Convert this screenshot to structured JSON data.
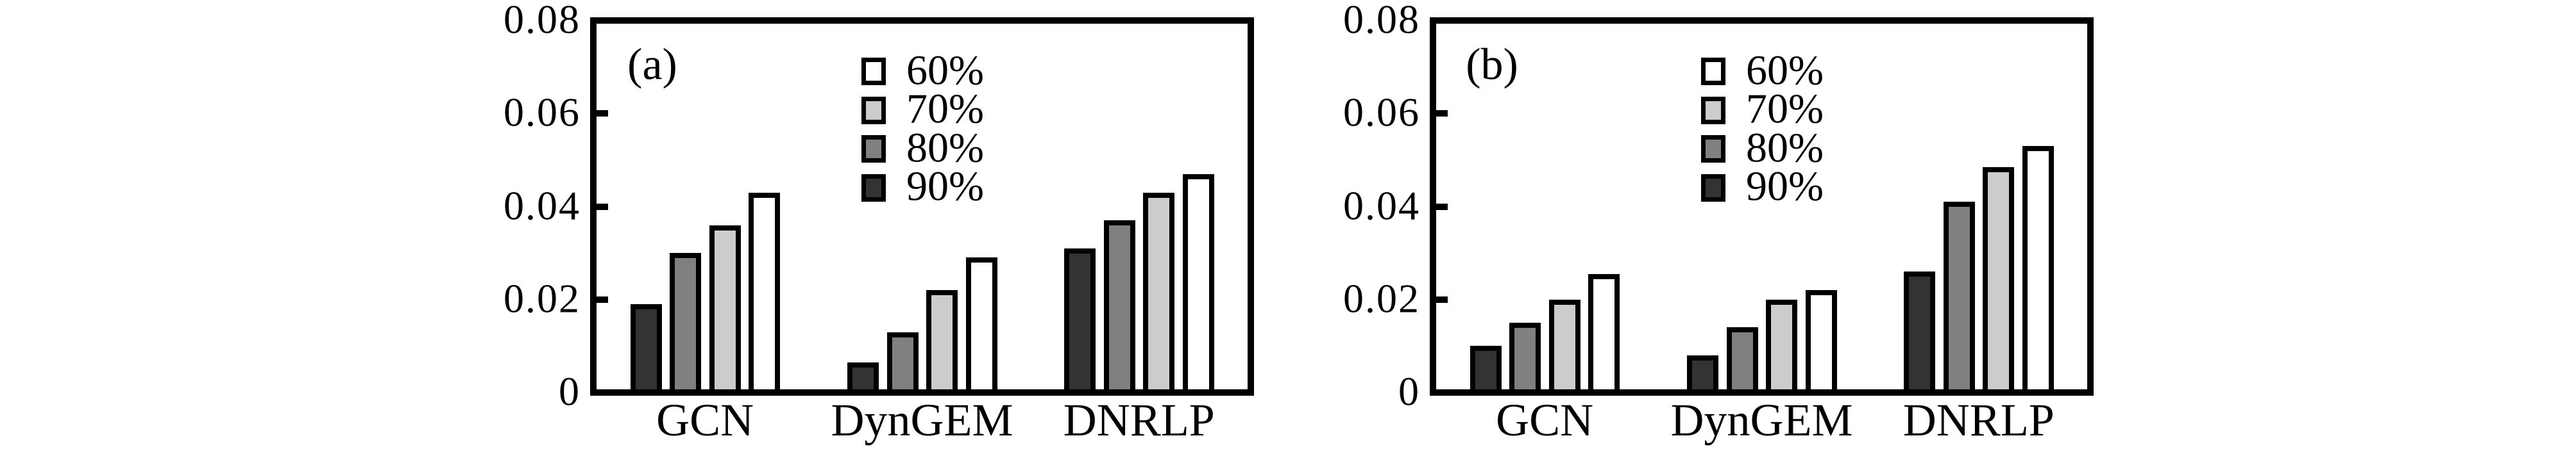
{
  "figure": {
    "background": "#ffffff",
    "axis_color": "#000000",
    "text_color": "#000000"
  },
  "chart_data": [
    {
      "type": "bar",
      "panel_label": "(a)",
      "title": "",
      "xlabel": "",
      "ylabel": "",
      "ylim": [
        0,
        0.08
      ],
      "grid": false,
      "legend_position": "upper-center-inside",
      "categories": [
        "GCN",
        "DynGEM",
        "DNRLP"
      ],
      "series": [
        {
          "name": "90%",
          "color": "#333333",
          "values": [
            0.019,
            0.0065,
            0.031
          ]
        },
        {
          "name": "80%",
          "color": "#808080",
          "values": [
            0.03,
            0.013,
            0.037
          ]
        },
        {
          "name": "70%",
          "color": "#cccccc",
          "values": [
            0.036,
            0.022,
            0.043
          ]
        },
        {
          "name": "60%",
          "color": "#ffffff",
          "values": [
            0.043,
            0.029,
            0.047
          ]
        }
      ],
      "bar_order_note": "bars drawn left-to-right: 90%, 80%, 70%, 60%",
      "legend_order": [
        "60%",
        "70%",
        "80%",
        "90%"
      ],
      "y_ticks": [
        {
          "value": 0,
          "label": "0"
        },
        {
          "value": 0.02,
          "label": "0.02"
        },
        {
          "value": 0.04,
          "label": "0.04"
        },
        {
          "value": 0.06,
          "label": "0.06"
        },
        {
          "value": 0.08,
          "label": "0.08"
        }
      ]
    },
    {
      "type": "bar",
      "panel_label": "(b)",
      "title": "",
      "xlabel": "",
      "ylabel": "",
      "ylim": [
        0,
        0.08
      ],
      "grid": false,
      "legend_position": "upper-center-inside",
      "categories": [
        "GCN",
        "DynGEM",
        "DNRLP"
      ],
      "series": [
        {
          "name": "90%",
          "color": "#333333",
          "values": [
            0.01,
            0.008,
            0.026
          ]
        },
        {
          "name": "80%",
          "color": "#808080",
          "values": [
            0.015,
            0.014,
            0.041
          ]
        },
        {
          "name": "70%",
          "color": "#cccccc",
          "values": [
            0.02,
            0.02,
            0.0485
          ]
        },
        {
          "name": "60%",
          "color": "#ffffff",
          "values": [
            0.0255,
            0.022,
            0.053
          ]
        }
      ],
      "bar_order_note": "bars drawn left-to-right: 90%, 80%, 70%, 60%",
      "legend_order": [
        "60%",
        "70%",
        "80%",
        "90%"
      ],
      "y_ticks": [
        {
          "value": 0,
          "label": "0"
        },
        {
          "value": 0.02,
          "label": "0.02"
        },
        {
          "value": 0.04,
          "label": "0.04"
        },
        {
          "value": 0.06,
          "label": "0.06"
        },
        {
          "value": 0.08,
          "label": "0.08"
        }
      ]
    }
  ]
}
